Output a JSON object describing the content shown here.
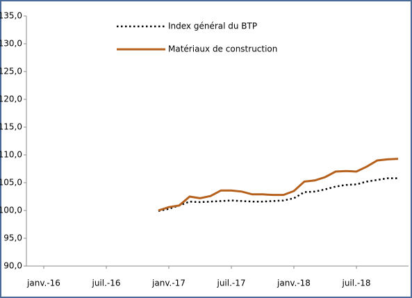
{
  "chart_data": {
    "type": "line",
    "categories": [
      "janv.-16",
      null,
      null,
      null,
      null,
      null,
      "juil.-16",
      null,
      null,
      null,
      null,
      null,
      "janv.-17",
      null,
      null,
      null,
      null,
      null,
      "juil.-17",
      null,
      null,
      null,
      null,
      null,
      "janv.-18",
      null,
      null,
      null,
      null,
      null,
      "juil.-18",
      null,
      null,
      null,
      null,
      null
    ],
    "series": [
      {
        "name": "Index général du BTP",
        "color": "#000000",
        "style": "dotted",
        "values": [
          null,
          null,
          null,
          null,
          null,
          null,
          null,
          null,
          null,
          null,
          null,
          99.9,
          100.3,
          100.9,
          101.6,
          101.5,
          101.6,
          101.7,
          101.8,
          101.7,
          101.6,
          101.6,
          101.7,
          101.8,
          102.2,
          103.3,
          103.4,
          103.8,
          104.3,
          104.6,
          104.7,
          105.2,
          105.5,
          105.8,
          105.8,
          null
        ]
      },
      {
        "name": "Matériaux de construction",
        "color": "#b5601c",
        "style": "solid",
        "values": [
          null,
          null,
          null,
          null,
          null,
          null,
          null,
          null,
          null,
          null,
          null,
          100.0,
          100.6,
          100.9,
          102.5,
          102.2,
          102.6,
          103.6,
          103.6,
          103.4,
          102.9,
          102.9,
          102.8,
          102.8,
          103.5,
          105.2,
          105.4,
          106.0,
          107.0,
          107.1,
          107.0,
          107.9,
          109.0,
          109.2,
          109.3,
          null
        ]
      }
    ],
    "ylim": [
      90,
      135
    ],
    "yticks": [
      {
        "value": 90,
        "label": "90,0"
      },
      {
        "value": 95,
        "label": "95,0"
      },
      {
        "value": 100,
        "label": "100,0"
      },
      {
        "value": 105,
        "label": "105,0"
      },
      {
        "value": 110,
        "label": "110,0"
      },
      {
        "value": 115,
        "label": "115,0"
      },
      {
        "value": 120,
        "label": "120,0"
      },
      {
        "value": 125,
        "label": "125,0"
      },
      {
        "value": 130,
        "label": "130,0"
      },
      {
        "value": 135,
        "label": "135,0"
      }
    ],
    "grid": false,
    "legend": "top"
  }
}
